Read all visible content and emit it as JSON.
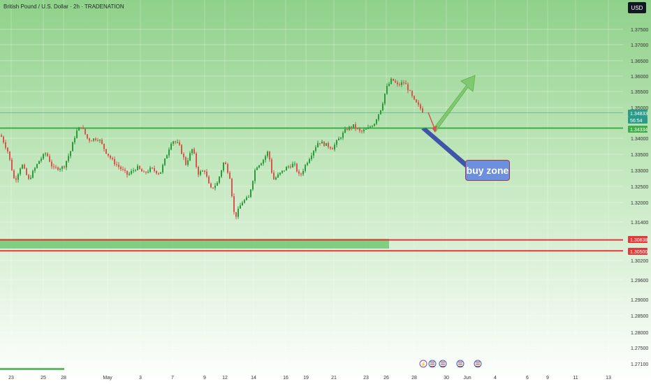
{
  "header": {
    "title": "British Pound / U.S. Dollar · 2h · TRADENATION",
    "currency_button": "USD"
  },
  "colors": {
    "bg_top": "#8fd18a",
    "bg_bottom": "#ffffff",
    "support_line": "#3fae48",
    "resistance_line": "#e5383b",
    "up_candle": "#2a9a3a",
    "down_candle": "#d9534f",
    "current_price_tag": "#2a9a8a",
    "arrow_up": "#7cc86a",
    "arrow_down": "#d9534f",
    "buy_zone_bg": "#6c8fe0"
  },
  "annotation": {
    "label": "buy zone"
  },
  "chart_data": {
    "type": "candlestick",
    "title": "British Pound / U.S. Dollar · 2h · TRADENATION",
    "ylim": [
      1.27,
      1.38
    ],
    "y_ticks": [
      "1.37500",
      "1.37000",
      "1.36500",
      "1.36000",
      "1.35500",
      "1.35000",
      "1.34000",
      "1.33500",
      "1.33000",
      "1.32500",
      "1.32000",
      "1.31400",
      "1.30200",
      "1.29600",
      "1.29000",
      "1.28500",
      "1.28000",
      "1.27500",
      "1.27100"
    ],
    "x_ticks": [
      "23",
      "25",
      "28",
      "May",
      "3",
      "7",
      "9",
      "12",
      "14",
      "16",
      "19",
      "21",
      "23",
      "26",
      "28",
      "30",
      "Jun",
      "4",
      "6",
      "9",
      "11",
      "13"
    ],
    "price_tags": [
      {
        "label": "1.34833",
        "value": 1.3483,
        "kind": "current"
      },
      {
        "label": "56:54",
        "value": 1.3473,
        "kind": "countdown"
      },
      {
        "label": "1.34334",
        "value": 1.3433,
        "kind": "support"
      },
      {
        "label": "1.30838",
        "value": 1.3084,
        "kind": "resistance"
      },
      {
        "label": "1.30500",
        "value": 1.305,
        "kind": "resistance"
      }
    ],
    "levels": [
      {
        "name": "support",
        "value": 1.3433
      },
      {
        "name": "zone_top",
        "value": 1.3084
      },
      {
        "name": "zone_bottom",
        "value": 1.305
      }
    ],
    "path": [
      [
        0,
        1.341
      ],
      [
        10,
        1.336
      ],
      [
        20,
        1.3265
      ],
      [
        30,
        1.332
      ],
      [
        40,
        1.327
      ],
      [
        55,
        1.333
      ],
      [
        65,
        1.3355
      ],
      [
        75,
        1.3305
      ],
      [
        90,
        1.331
      ],
      [
        100,
        1.336
      ],
      [
        108,
        1.342
      ],
      [
        115,
        1.344
      ],
      [
        125,
        1.3395
      ],
      [
        140,
        1.34
      ],
      [
        150,
        1.336
      ],
      [
        160,
        1.333
      ],
      [
        172,
        1.3305
      ],
      [
        182,
        1.3285
      ],
      [
        195,
        1.331
      ],
      [
        205,
        1.329
      ],
      [
        215,
        1.3305
      ],
      [
        228,
        1.329
      ],
      [
        238,
        1.335
      ],
      [
        245,
        1.3395
      ],
      [
        255,
        1.338
      ],
      [
        265,
        1.332
      ],
      [
        275,
        1.337
      ],
      [
        282,
        1.329
      ],
      [
        292,
        1.33
      ],
      [
        300,
        1.324
      ],
      [
        310,
        1.326
      ],
      [
        320,
        1.333
      ],
      [
        328,
        1.328
      ],
      [
        335,
        1.315
      ],
      [
        345,
        1.32
      ],
      [
        355,
        1.3215
      ],
      [
        365,
        1.331
      ],
      [
        375,
        1.333
      ],
      [
        383,
        1.336
      ],
      [
        390,
        1.327
      ],
      [
        400,
        1.329
      ],
      [
        410,
        1.331
      ],
      [
        420,
        1.332
      ],
      [
        428,
        1.328
      ],
      [
        437,
        1.332
      ],
      [
        447,
        1.336
      ],
      [
        455,
        1.339
      ],
      [
        465,
        1.338
      ],
      [
        475,
        1.337
      ],
      [
        485,
        1.34
      ],
      [
        495,
        1.343
      ],
      [
        505,
        1.344
      ],
      [
        515,
        1.342
      ],
      [
        525,
        1.343
      ],
      [
        535,
        1.345
      ],
      [
        545,
        1.35
      ],
      [
        552,
        1.356
      ],
      [
        560,
        1.359
      ],
      [
        568,
        1.357
      ],
      [
        578,
        1.358
      ],
      [
        585,
        1.355
      ],
      [
        592,
        1.352
      ],
      [
        600,
        1.35
      ],
      [
        606,
        1.3483
      ]
    ]
  }
}
